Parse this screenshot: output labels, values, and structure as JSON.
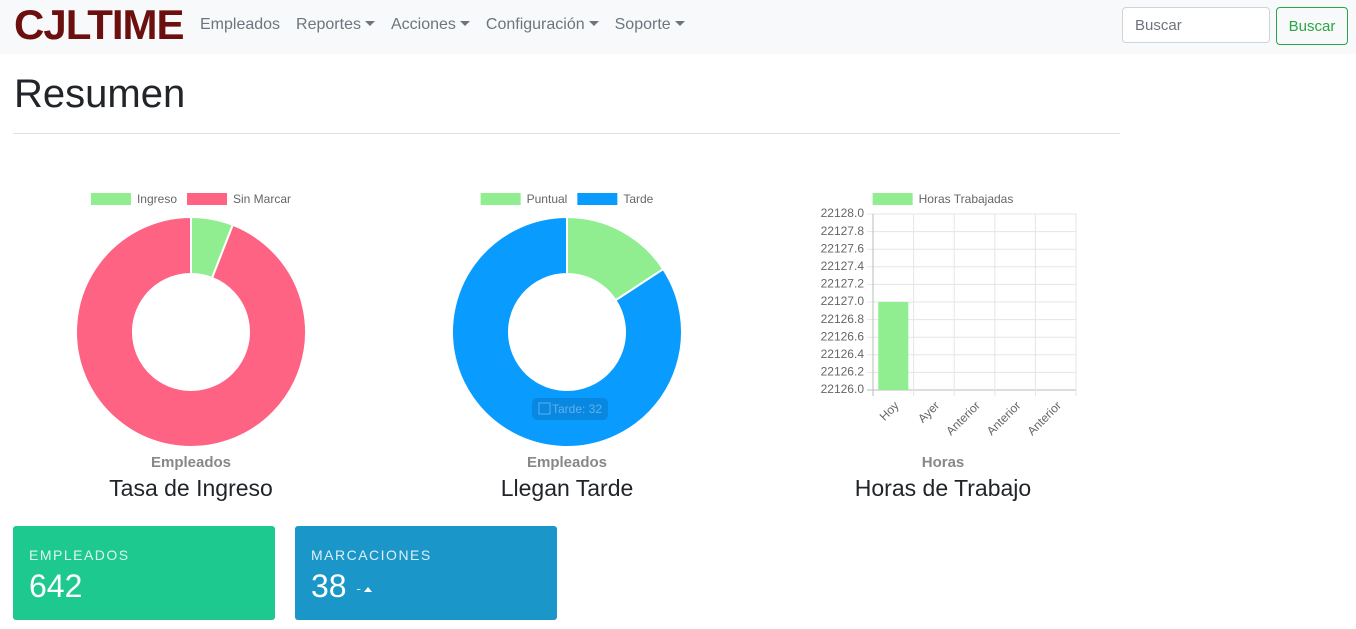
{
  "nav": {
    "brand": "CJLTIME",
    "items": [
      {
        "label": "Empleados",
        "dropdown": false
      },
      {
        "label": "Reportes",
        "dropdown": true
      },
      {
        "label": "Acciones",
        "dropdown": true
      },
      {
        "label": "Configuración",
        "dropdown": true
      },
      {
        "label": "Soporte",
        "dropdown": true
      }
    ],
    "search_placeholder": "Buscar",
    "search_button": "Buscar"
  },
  "page_title": "Resumen",
  "chart_data": [
    {
      "type": "doughnut",
      "caption": "Empleados",
      "title": "Tasa de Ingreso",
      "categories": [
        "Ingreso",
        "Sin Marcar"
      ],
      "values": [
        38,
        604
      ],
      "colors": [
        "#90ee90",
        "#ff6384"
      ]
    },
    {
      "type": "doughnut",
      "caption": "Empleados",
      "title": "Llegan Tarde",
      "categories": [
        "Puntual",
        "Tarde"
      ],
      "values": [
        6,
        32
      ],
      "colors": [
        "#90ee90",
        "#0a9bff"
      ],
      "tooltip": "Tarde: 32"
    },
    {
      "type": "bar",
      "caption": "Horas",
      "title": "Horas de Trabajo",
      "categories": [
        "Hoy",
        "Ayer",
        "Anterior",
        "Anterior",
        "Anterior"
      ],
      "series": [
        {
          "name": "Horas Trabajadas",
          "color": "#90ee90",
          "values": [
            22127.0,
            null,
            null,
            null,
            null
          ]
        }
      ],
      "ylim": [
        22126.0,
        22128.0
      ],
      "yticks": [
        {
          "value": 22126.0,
          "label": "22126.0"
        },
        {
          "value": 22126.2,
          "label": "22126.2"
        },
        {
          "value": 22126.4,
          "label": "22126.4"
        },
        {
          "value": 22126.6,
          "label": "22126.6"
        },
        {
          "value": 22126.8,
          "label": "22126.8"
        },
        {
          "value": 22127.0,
          "label": "22127.0"
        },
        {
          "value": 22127.2,
          "label": "22127.2"
        },
        {
          "value": 22127.4,
          "label": "22127.4"
        },
        {
          "value": 22127.6,
          "label": "22127.6"
        },
        {
          "value": 22127.8,
          "label": "22127.8"
        },
        {
          "value": 22128.0,
          "label": "22128.0"
        }
      ],
      "grid": true
    }
  ],
  "cards": [
    {
      "label": "EMPLEADOS",
      "value": 642,
      "color": "#1dc98e"
    },
    {
      "label": "MARCACIONES",
      "value": 38,
      "color": "#1a96c8",
      "trend": "-"
    }
  ]
}
